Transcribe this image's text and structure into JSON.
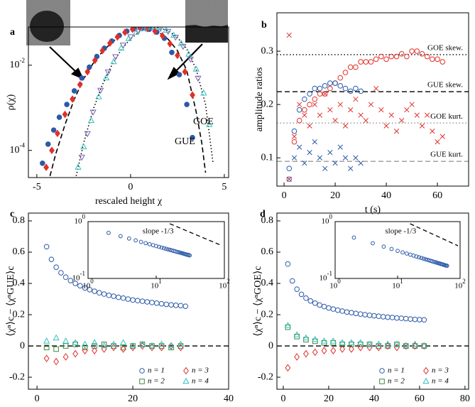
{
  "chart_data": [
    {
      "type": "line",
      "panel_label": "a",
      "xlabel": "rescaled height χ",
      "ylabel": "ρ(χ)",
      "xlim": [
        -5.45,
        5.23
      ],
      "ylim": [
        2.3e-05,
        0.079
      ],
      "yscale": "log",
      "xticks": [
        -5,
        0,
        5
      ],
      "yticks": [
        {
          "value": 0.01,
          "label": "10^-2"
        },
        {
          "value": 0.0001,
          "label": "10^-4"
        }
      ],
      "annotations": [
        "GOE",
        "GUE"
      ],
      "series": [
        {
          "color": "#000000",
          "style": "dashed",
          "x": [
            -4.3,
            -4,
            -3.5,
            -3,
            -2.5,
            -2,
            -1.5,
            -1,
            -0.5,
            0,
            0.5,
            1,
            1.5,
            2,
            2.5,
            3,
            3.5,
            3.8,
            4.0
          ],
          "values": [
            2.5e-05,
            8e-05,
            0.0004,
            0.0016,
            0.0048,
            0.011,
            0.021,
            0.034,
            0.052,
            0.068,
            0.076,
            0.073,
            0.06,
            0.041,
            0.022,
            0.0075,
            0.0008,
            0.00015,
            3e-05
          ]
        },
        {
          "color": "#000000",
          "style": "dotted",
          "x": [
            -2.9,
            -2.5,
            -2,
            -1.5,
            -1,
            -0.5,
            0,
            0.5,
            1,
            1.5,
            2,
            2.5,
            3,
            3.5,
            4,
            4.4
          ],
          "values": [
            2.5e-05,
            0.00015,
            0.0009,
            0.0035,
            0.01,
            0.023,
            0.042,
            0.062,
            0.075,
            0.076,
            0.065,
            0.045,
            0.024,
            0.008,
            0.0012,
            5e-05
          ]
        },
        {
          "color": "#2c5aa8",
          "marker": "filled-circle",
          "x": [
            -4.7,
            -4.4,
            -4.1,
            -3.8,
            -3.4,
            -3,
            -2.6,
            -2.2,
            -1.8,
            -1.4,
            -1,
            -0.6,
            -0.2,
            0.2,
            0.6,
            1,
            1.4,
            1.8,
            2.2,
            2.6,
            3,
            3.3
          ],
          "values": [
            5e-05,
            0.00014,
            0.0003,
            0.0006,
            0.0012,
            0.0025,
            0.005,
            0.009,
            0.016,
            0.025,
            0.037,
            0.05,
            0.063,
            0.072,
            0.074,
            0.07,
            0.06,
            0.043,
            0.02,
            0.006,
            0.0012,
            0.0002
          ]
        },
        {
          "color": "#e0302a",
          "marker": "filled-diamond",
          "x": [
            -4.5,
            -4.2,
            -3.9,
            -3.5,
            -3.1,
            -2.7,
            -2.3,
            -1.9,
            -1.5,
            -1.1,
            -0.7,
            -0.3,
            0.1,
            0.5,
            0.9,
            1.3,
            1.7,
            2.1,
            2.5,
            2.9,
            3.3
          ],
          "values": [
            4e-05,
            0.0001,
            0.00025,
            0.0007,
            0.0016,
            0.0035,
            0.007,
            0.013,
            0.022,
            0.033,
            0.046,
            0.059,
            0.07,
            0.075,
            0.072,
            0.063,
            0.049,
            0.032,
            0.017,
            0.007,
            0.002
          ]
        },
        {
          "color": "#7b5fb5",
          "marker": "triangle-down",
          "x": [
            -2.6,
            -2.3,
            -2,
            -1.6,
            -1.2,
            -0.8,
            -0.4,
            0,
            0.4,
            0.8,
            1.2,
            1.6,
            2,
            2.4,
            2.8,
            3.2,
            3.6
          ],
          "values": [
            7e-05,
            0.00025,
            0.0008,
            0.0026,
            0.007,
            0.016,
            0.03,
            0.047,
            0.063,
            0.074,
            0.078,
            0.074,
            0.063,
            0.046,
            0.028,
            0.014,
            0.005
          ]
        },
        {
          "color": "#35c0c0",
          "marker": "triangle",
          "x": [
            -2.8,
            -2.5,
            -2.1,
            -1.7,
            -1.3,
            -0.9,
            -0.5,
            -0.1,
            0.3,
            0.7,
            1.1,
            1.5,
            1.9,
            2.3,
            2.7,
            3.1,
            3.5,
            3.9,
            4.2
          ],
          "values": [
            4e-05,
            0.00012,
            0.0005,
            0.0018,
            0.005,
            0.012,
            0.025,
            0.042,
            0.059,
            0.072,
            0.078,
            0.076,
            0.066,
            0.05,
            0.032,
            0.018,
            0.008,
            0.0022,
            0.0004
          ]
        }
      ]
    },
    {
      "type": "scatter",
      "panel_label": "b",
      "xlabel": "t (s)",
      "ylabel": "amplitude ratios",
      "xlim": [
        -2.8,
        72.2
      ],
      "ylim": [
        0.047,
        0.372
      ],
      "xticks": [
        0,
        20,
        40,
        60
      ],
      "yticks": [
        0.1,
        0.2,
        0.3
      ],
      "reference_lines": [
        {
          "value": 0.2935,
          "label": "GOE skew.",
          "color": "#000000",
          "style": "dotted"
        },
        {
          "value": 0.2241,
          "label": "GUE skew.",
          "color": "#000000",
          "style": "dashed"
        },
        {
          "value": 0.1652,
          "label": "GOE kurt.",
          "color": "#999999",
          "style": "dotted"
        },
        {
          "value": 0.0934,
          "label": "GUE kurt.",
          "color": "#999999",
          "style": "dashed"
        }
      ],
      "series": [
        {
          "color": "#e0302a",
          "marker": "circle",
          "x": [
            2,
            4,
            6,
            8,
            10,
            12,
            14,
            16,
            18,
            20,
            22,
            24,
            26,
            28,
            30,
            32,
            34,
            36,
            38,
            40,
            42,
            44,
            46,
            48,
            50,
            52,
            54,
            56,
            58,
            60,
            62
          ],
          "values": [
            0.06,
            0.13,
            0.17,
            0.19,
            0.2,
            0.21,
            0.22,
            0.22,
            0.23,
            0.24,
            0.25,
            0.26,
            0.27,
            0.27,
            0.28,
            0.28,
            0.28,
            0.285,
            0.29,
            0.285,
            0.29,
            0.29,
            0.295,
            0.29,
            0.3,
            0.3,
            0.295,
            0.29,
            0.285,
            0.285,
            0.28
          ]
        },
        {
          "color": "#2c5aa8",
          "marker": "circle",
          "x": [
            2,
            4,
            6,
            8,
            10,
            12,
            14,
            16,
            18,
            20,
            22,
            24,
            26,
            28,
            30
          ],
          "values": [
            0.08,
            0.15,
            0.19,
            0.21,
            0.22,
            0.23,
            0.23,
            0.235,
            0.24,
            0.24,
            0.235,
            0.23,
            0.225,
            0.23,
            0.225
          ]
        },
        {
          "color": "#e0302a",
          "marker": "x",
          "x": [
            2,
            4,
            6,
            8,
            10,
            12,
            14,
            16,
            18,
            20,
            22,
            24,
            26,
            28,
            30,
            32,
            34,
            36,
            38,
            40,
            42,
            44,
            46,
            48,
            50,
            52,
            54,
            56,
            58,
            60,
            62
          ],
          "values": [
            0.33,
            0.14,
            0.2,
            0.18,
            0.16,
            0.2,
            0.18,
            0.22,
            0.19,
            0.17,
            0.2,
            0.16,
            0.19,
            0.21,
            0.18,
            0.17,
            0.2,
            0.23,
            0.19,
            0.16,
            0.18,
            0.15,
            0.17,
            0.19,
            0.2,
            0.18,
            0.16,
            0.18,
            0.15,
            0.13,
            0.14
          ]
        },
        {
          "color": "#2c5aa8",
          "marker": "x",
          "x": [
            2,
            4,
            6,
            8,
            10,
            12,
            14,
            16,
            18,
            20,
            22,
            24,
            26,
            28,
            30
          ],
          "values": [
            0.06,
            0.1,
            0.12,
            0.09,
            0.11,
            0.13,
            0.1,
            0.08,
            0.11,
            0.09,
            0.12,
            0.1,
            0.08,
            0.1,
            0.09
          ]
        }
      ]
    },
    {
      "type": "scatter",
      "panel_label": "c",
      "xlabel": "t (s)",
      "ylabel": "⟨χⁿ⟩c − ⟨χⁿGUE⟩c",
      "xlim": [
        -1.8,
        40
      ],
      "ylim": [
        -0.277,
        0.85
      ],
      "xticks": [
        0,
        20,
        40
      ],
      "yticks": [
        -0.2,
        0,
        0.2,
        0.4,
        0.6,
        0.8
      ],
      "reference_lines": [
        {
          "value": 0,
          "color": "#000000",
          "style": "dashed"
        }
      ],
      "legend": "lower right",
      "series": [
        {
          "name": "n = 1",
          "color": "#2c5aa8",
          "marker": "circle",
          "x": [
            2,
            3,
            4,
            5,
            6,
            7,
            8,
            9,
            10,
            11,
            12,
            13,
            14,
            15,
            16,
            17,
            18,
            19,
            20,
            21,
            22,
            23,
            24,
            25,
            26,
            27,
            28,
            29,
            30,
            31
          ],
          "values": [
            0.635,
            0.554,
            0.504,
            0.468,
            0.44,
            0.418,
            0.4,
            0.385,
            0.371,
            0.36,
            0.35,
            0.34,
            0.332,
            0.324,
            0.318,
            0.311,
            0.306,
            0.3,
            0.294,
            0.29,
            0.286,
            0.282,
            0.278,
            0.274,
            0.27,
            0.266,
            0.263,
            0.26,
            0.258,
            0.254
          ]
        },
        {
          "name": "n = 2",
          "color": "#3c8c3c",
          "marker": "square",
          "x": [
            2,
            4,
            6,
            8,
            10,
            12,
            14,
            16,
            18,
            20,
            22,
            24,
            26,
            28,
            30
          ],
          "values": [
            -0.01,
            -0.02,
            0,
            0.01,
            -0.01,
            0,
            0.01,
            0,
            -0.01,
            0,
            0.01,
            0,
            0,
            -0.01,
            0
          ]
        },
        {
          "name": "n = 3",
          "color": "#e0302a",
          "marker": "diamond",
          "x": [
            2,
            4,
            6,
            8,
            10,
            12,
            14,
            16,
            18,
            20,
            22,
            24,
            26,
            28,
            30
          ],
          "values": [
            -0.08,
            -0.1,
            -0.07,
            -0.05,
            -0.03,
            -0.03,
            -0.02,
            -0.01,
            -0.02,
            -0.01,
            0,
            -0.01,
            -0.01,
            0,
            -0.01
          ]
        },
        {
          "name": "n = 4",
          "color": "#35c0c0",
          "marker": "triangle",
          "x": [
            2,
            4,
            6,
            8,
            10,
            12,
            14,
            16,
            18,
            20,
            22,
            24,
            26,
            28,
            30
          ],
          "values": [
            0.03,
            0.05,
            0.03,
            0.02,
            0.01,
            0.02,
            0,
            0.01,
            0.02,
            0,
            0.01,
            0,
            0.01,
            0,
            0.01
          ]
        }
      ],
      "inset": {
        "xlim": [
          1,
          100
        ],
        "ylim": [
          0.1,
          1
        ],
        "xscale": "log",
        "yscale": "log",
        "xticks": [
          {
            "value": 1,
            "label": "10^0"
          },
          {
            "value": 10,
            "label": "10^1"
          },
          {
            "value": 100,
            "label": "10^2"
          }
        ],
        "yticks": [
          {
            "value": 0.1,
            "label": "10^-1"
          },
          {
            "value": 1,
            "label": "10^0"
          }
        ],
        "annotation": "slope -1/3"
      }
    },
    {
      "type": "scatter",
      "panel_label": "d",
      "xlabel": "t (s)",
      "ylabel": "⟨χⁿ⟩c − ⟨χⁿGOE⟩c",
      "xlim": [
        -2.8,
        81.6
      ],
      "ylim": [
        -0.277,
        0.85
      ],
      "xticks": [
        0,
        20,
        40,
        60,
        80
      ],
      "yticks": [
        -0.2,
        0,
        0.2,
        0.4,
        0.6,
        0.8
      ],
      "reference_lines": [
        {
          "value": 0,
          "color": "#000000",
          "style": "dashed"
        }
      ],
      "legend": "lower right",
      "series": [
        {
          "name": "n = 1",
          "color": "#2c5aa8",
          "marker": "circle",
          "x": [
            2,
            4,
            6,
            8,
            10,
            12,
            14,
            16,
            18,
            20,
            22,
            24,
            26,
            28,
            30,
            32,
            34,
            36,
            38,
            40,
            42,
            44,
            46,
            48,
            50,
            52,
            54,
            56,
            58,
            60,
            62
          ],
          "values": [
            0.524,
            0.416,
            0.363,
            0.33,
            0.306,
            0.288,
            0.274,
            0.262,
            0.252,
            0.243,
            0.236,
            0.229,
            0.223,
            0.217,
            0.213,
            0.208,
            0.204,
            0.2,
            0.196,
            0.193,
            0.19,
            0.187,
            0.184,
            0.182,
            0.179,
            0.177,
            0.175,
            0.172,
            0.17,
            0.168,
            0.167
          ]
        },
        {
          "name": "n = 2",
          "color": "#3c8c3c",
          "marker": "square",
          "x": [
            2,
            6,
            10,
            14,
            18,
            22,
            26,
            30,
            34,
            38,
            42,
            46,
            50,
            54,
            58,
            62
          ],
          "values": [
            0.12,
            0.06,
            0.04,
            0.03,
            0.02,
            0.02,
            0.01,
            0.01,
            0.01,
            0.01,
            0,
            0,
            0.01,
            0,
            0,
            0
          ]
        },
        {
          "name": "n = 3",
          "color": "#e0302a",
          "marker": "diamond",
          "x": [
            2,
            6,
            10,
            14,
            18,
            22,
            26,
            30,
            34,
            38,
            42,
            46,
            50,
            54,
            58,
            62
          ],
          "values": [
            -0.14,
            -0.07,
            -0.05,
            -0.04,
            -0.03,
            -0.03,
            -0.02,
            -0.02,
            -0.01,
            -0.01,
            -0.01,
            0,
            -0.01,
            0,
            0,
            0
          ]
        },
        {
          "name": "n = 4",
          "color": "#35c0c0",
          "marker": "triangle",
          "x": [
            2,
            6,
            10,
            14,
            18,
            22,
            26,
            30,
            34,
            38,
            42,
            46,
            50,
            54,
            58,
            62
          ],
          "values": [
            0.13,
            0.07,
            0.05,
            0.04,
            0.03,
            0.03,
            0.02,
            0.02,
            0.02,
            0.01,
            0.01,
            0.01,
            0.01,
            0,
            0.01,
            0
          ]
        }
      ],
      "inset": {
        "xlim": [
          1,
          100
        ],
        "ylim": [
          0.1,
          1
        ],
        "xscale": "log",
        "yscale": "log",
        "xticks": [
          {
            "value": 1,
            "label": "10^0"
          },
          {
            "value": 10,
            "label": "10^1"
          },
          {
            "value": 100,
            "label": "10^2"
          }
        ],
        "yticks": [
          {
            "value": 0.1,
            "label": "10^-1"
          },
          {
            "value": 1,
            "label": "10^0"
          }
        ],
        "annotation": "slope -1/3"
      }
    }
  ]
}
